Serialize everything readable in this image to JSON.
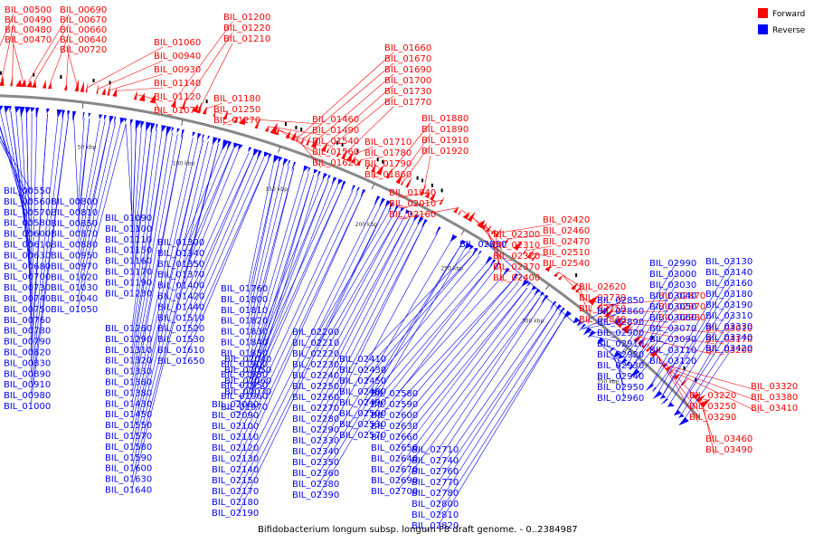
{
  "caption": "Bifidobacterium longum subsp. longum F8 draft genome. - 0..2384987",
  "legend": [
    {
      "label": "Forward",
      "color": "#ff0000"
    },
    {
      "label": "Reverse",
      "color": "#0000ff"
    }
  ],
  "scale_ticks": [
    "50 kbp",
    "100 kbp",
    "150 kbp",
    "200 kbp",
    "250 kbp",
    "300 kbp",
    "350 kbp"
  ],
  "colors": {
    "forward": "#ff0000",
    "reverse": "#0000ff",
    "backbone": "#888888",
    "other": "#000000"
  },
  "forward_genes": [
    "BIL_00500",
    "BIL_00490",
    "BIL_00480",
    "BIL_00470",
    "BIL_00690",
    "BIL_00670",
    "BIL_00660",
    "BIL_00640",
    "BIL_00720",
    "BIL_01060",
    "BIL_00940",
    "BIL_00930",
    "BIL_01140",
    "BIL_01120",
    "BIL_01070",
    "BIL_01200",
    "BIL_01220",
    "BIL_01210",
    "BIL_01180",
    "BIL_01250",
    "BIL_01270",
    "BIL_01460",
    "BIL_01490",
    "BIL_01540",
    "BIL_01560",
    "BIL_01620",
    "BIL_01660",
    "BIL_01670",
    "BIL_01690",
    "BIL_01700",
    "BIL_01730",
    "BIL_01770",
    "BIL_01710",
    "BIL_01780",
    "BIL_01790",
    "BIL_01860",
    "BIL_01880",
    "BIL_01890",
    "BIL_01910",
    "BIL_01920",
    "BIL_01940",
    "BIL_02010",
    "BIL_02160",
    "BIL_02300",
    "BIL_02310",
    "BIL_02320",
    "BIL_02370",
    "BIL_02400",
    "BIL_02420",
    "BIL_02460",
    "BIL_02470",
    "BIL_02510",
    "BIL_02540",
    "BIL_02620",
    "BIL_02730",
    "BIL_02750",
    "BIL_02840",
    "BIL_02870",
    "BIL_02970",
    "BIL_02980",
    "BIL_03010",
    "BIL_03170",
    "BIL_03200",
    "BIL_03220",
    "BIL_03250",
    "BIL_03290",
    "BIL_03320",
    "BIL_03380",
    "BIL_03410",
    "BIL_03460",
    "BIL_03490"
  ],
  "reverse_genes": [
    "BIL_00550",
    "BIL_00560",
    "BIL_00570",
    "BIL_00580",
    "BIL_00600",
    "BIL_00610",
    "BIL_00630",
    "BIL_00680",
    "BIL_00700",
    "BIL_00730",
    "BIL_00740",
    "BIL_00750",
    "BIL_00760",
    "BIL_00780",
    "BIL_00790",
    "BIL_00820",
    "BIL_00830",
    "BIL_00890",
    "BIL_00910",
    "BIL_00980",
    "BIL_01000",
    "BIL_00800",
    "BIL_00810",
    "BIL_00850",
    "BIL_00870",
    "BIL_00880",
    "BIL_00950",
    "BIL_00970",
    "BIL_01020",
    "BIL_01030",
    "BIL_01040",
    "BIL_01050",
    "BIL_01090",
    "BIL_01100",
    "BIL_01110",
    "BIL_01150",
    "BIL_01160",
    "BIL_01170",
    "BIL_01190",
    "BIL_01230",
    "BIL_01260",
    "BIL_01290",
    "BIL_01310",
    "BIL_01320",
    "BIL_01330",
    "BIL_01360",
    "BIL_01380",
    "BIL_01430",
    "BIL_01450",
    "BIL_01550",
    "BIL_01570",
    "BIL_01580",
    "BIL_01590",
    "BIL_01600",
    "BIL_01630",
    "BIL_01640",
    "BIL_01300",
    "BIL_01340",
    "BIL_01350",
    "BIL_01370",
    "BIL_01400",
    "BIL_01420",
    "BIL_01440",
    "BIL_01510",
    "BIL_01520",
    "BIL_01530",
    "BIL_01610",
    "BIL_01650",
    "BIL_01760",
    "BIL_01800",
    "BIL_01810",
    "BIL_01820",
    "BIL_01830",
    "BIL_01840",
    "BIL_01850",
    "BIL_01900",
    "BIL_01930",
    "BIL_01950",
    "BIL_01960",
    "BIL_01970",
    "BIL_02040",
    "BIL_02050",
    "BIL_02060",
    "BIL_02070",
    "BIL_02080",
    "BIL_02090",
    "BIL_02100",
    "BIL_02110",
    "BIL_02120",
    "BIL_02130",
    "BIL_02140",
    "BIL_02150",
    "BIL_02170",
    "BIL_02180",
    "BIL_02190",
    "BIL_02200",
    "BIL_02210",
    "BIL_02220",
    "BIL_02230",
    "BIL_02240",
    "BIL_02250",
    "BIL_02260",
    "BIL_02270",
    "BIL_02280",
    "BIL_02290",
    "BIL_02330",
    "BIL_02340",
    "BIL_02350",
    "BIL_02360",
    "BIL_02380",
    "BIL_02390",
    "BIL_02410",
    "BIL_02430",
    "BIL_02450",
    "BIL_02480",
    "BIL_02490",
    "BIL_02500",
    "BIL_02530",
    "BIL_02570",
    "BIL_02580",
    "BIL_02590",
    "BIL_02600",
    "BIL_02630",
    "BIL_02660",
    "BIL_02650",
    "BIL_02640",
    "BIL_02670",
    "BIL_02690",
    "BIL_02700",
    "BIL_02710",
    "BIL_02740",
    "BIL_02760",
    "BIL_02770",
    "BIL_02780",
    "BIL_02800",
    "BIL_02810",
    "BIL_02820",
    "BIL_02830",
    "BIL_02850",
    "BIL_02860",
    "BIL_02890",
    "BIL_02900",
    "BIL_02910",
    "BIL_02920",
    "BIL_02930",
    "BIL_02940",
    "BIL_02950",
    "BIL_02960",
    "BIL_02990",
    "BIL_03000",
    "BIL_03030",
    "BIL_03040",
    "BIL_03050",
    "BIL_03060",
    "BIL_03070",
    "BIL_03090",
    "BIL_03110",
    "BIL_03120",
    "BIL_03130",
    "BIL_03140",
    "BIL_03160",
    "BIL_03180",
    "BIL_03190",
    "BIL_03310",
    "BIL_03330",
    "BIL_03340",
    "BIL_03420"
  ]
}
